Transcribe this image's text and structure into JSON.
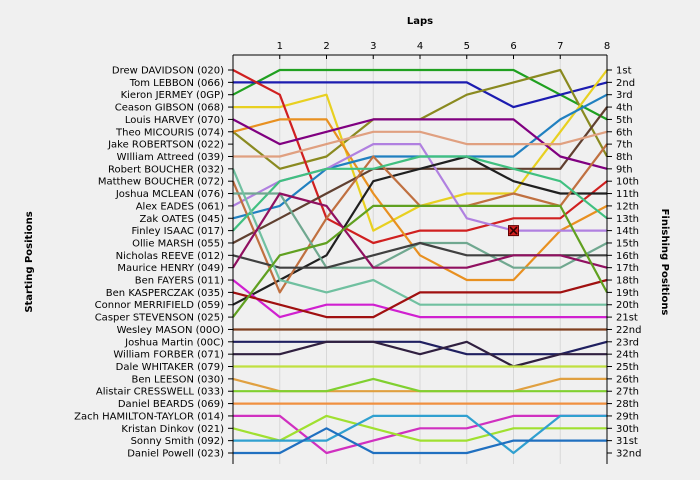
{
  "chart_data": {
    "type": "line",
    "title": "",
    "xlabel": "Laps",
    "ylabel": "Starting Positions",
    "y2label": "Finishing Positions",
    "x": [
      0,
      1,
      2,
      3,
      4,
      5,
      6,
      7,
      8
    ],
    "x_tick_labels": [
      "1",
      "2",
      "3",
      "4",
      "5",
      "6",
      "7",
      "8"
    ],
    "ylim": [
      1,
      32
    ],
    "y_inverted": true,
    "grid": true,
    "start_labels": [
      "Drew DAVIDSON (020)",
      "Tom LEBBON (066)",
      "Kieron JERMEY (0GP)",
      "Ceason GIBSON (068)",
      "Louis HARVEY (070)",
      "Theo MICOURIS (074)",
      "Jake ROBERTSON (022)",
      "WIlliam Attreed (039)",
      "Robert BOUCHER (032)",
      "Matthew BOUCHER (072)",
      "Joshua MCLEAN (076)",
      "Alex EADES (061)",
      "Zak OATES (045)",
      "Finley ISAAC (017)",
      "Ollie MARSH (055)",
      "Nicholas REEVE (012)",
      "Maurice HENRY (049)",
      "Ben FAYERS (011)",
      "Ben KASPERCZAK (035)",
      "Connor MERRIFIELD (059)",
      "Casper STEVENSON (025)",
      "Wesley MASON (00O)",
      "Joshua Martin (00C)",
      "William FORBER (071)",
      "Dale WHITAKER (079)",
      "Ben LEESON (030)",
      "Alistair CRESSWELL (033)",
      "Daniel BEARDS (069)",
      "Zach HAMILTON-TAYLOR (014)",
      "Kristan Dinkov (021)",
      "Sonny Smith (092)",
      "Daniel Powell (023)"
    ],
    "finish_labels": [
      "1st",
      "2nd",
      "3rd",
      "4th",
      "5th",
      "6th",
      "7th",
      "8th",
      "9th",
      "10th",
      "11th",
      "12th",
      "13th",
      "14th",
      "15th",
      "16th",
      "17th",
      "18th",
      "19th",
      "20th",
      "21st",
      "22nd",
      "23rd",
      "24th",
      "25th",
      "26th",
      "27th",
      "28th",
      "29th",
      "30th",
      "31st",
      "32nd"
    ],
    "retired_marker": {
      "x": 6,
      "y": 14
    },
    "series": [
      {
        "color": "#20a020",
        "values": [
          3,
          1,
          1,
          1,
          1,
          1,
          1,
          3,
          5
        ]
      },
      {
        "color": "#1c1cb0",
        "values": [
          2,
          2,
          2,
          2,
          2,
          2,
          4,
          3,
          2
        ]
      },
      {
        "color": "#8a8a20",
        "values": [
          6,
          9,
          8,
          5,
          5,
          3,
          2,
          1,
          8
        ]
      },
      {
        "color": "#e8d020",
        "values": [
          4,
          4,
          3,
          14,
          12,
          11,
          11,
          6,
          1
        ]
      },
      {
        "color": "#d02020",
        "values": [
          1,
          3,
          13,
          15,
          14,
          14,
          13,
          13,
          10
        ]
      },
      {
        "color": "#e89020",
        "values": [
          6,
          5,
          5,
          11,
          16,
          18,
          18,
          14,
          12
        ]
      },
      {
        "color": "#2080c0",
        "values": [
          13,
          12,
          9,
          8,
          8,
          8,
          8,
          5,
          3
        ]
      },
      {
        "color": "#604030",
        "values": [
          15,
          13,
          11,
          9,
          9,
          9,
          9,
          9,
          4
        ]
      },
      {
        "color": "#800080",
        "values": [
          5,
          7,
          6,
          5,
          5,
          5,
          5,
          8,
          9
        ]
      },
      {
        "color": "#e0a080",
        "values": [
          8,
          8,
          7,
          6,
          6,
          7,
          7,
          7,
          6
        ]
      },
      {
        "color": "#b080e0",
        "values": [
          12,
          10,
          9,
          7,
          7,
          13,
          14,
          14,
          14
        ]
      },
      {
        "color": "#202020",
        "values": [
          20,
          18,
          16,
          10,
          9,
          8,
          10,
          11,
          11
        ]
      },
      {
        "color": "#c07040",
        "values": [
          10,
          19,
          13,
          8,
          12,
          12,
          11,
          12,
          7
        ]
      },
      {
        "color": "#40c080",
        "values": [
          14,
          10,
          9,
          9,
          8,
          8,
          9,
          10,
          13
        ]
      },
      {
        "color": "#70a890",
        "values": [
          11,
          11,
          17,
          17,
          15,
          15,
          17,
          17,
          15
        ]
      },
      {
        "color": "#404040",
        "values": [
          16,
          17,
          17,
          16,
          15,
          16,
          16,
          16,
          16
        ]
      },
      {
        "color": "#70c0a0",
        "values": [
          9,
          18,
          19,
          18,
          20,
          20,
          20,
          20,
          20
        ]
      },
      {
        "color": "#901060",
        "values": [
          17,
          11,
          12,
          17,
          17,
          17,
          16,
          16,
          17
        ]
      },
      {
        "color": "#d020d0",
        "values": [
          18,
          21,
          20,
          20,
          21,
          21,
          21,
          21,
          21
        ]
      },
      {
        "color": "#a01010",
        "values": [
          19,
          20,
          21,
          21,
          19,
          19,
          19,
          19,
          18
        ]
      },
      {
        "color": "#60a020",
        "values": [
          21,
          16,
          15,
          12,
          12,
          12,
          12,
          12,
          19
        ]
      },
      {
        "color": "#804020",
        "values": [
          22,
          22,
          22,
          22,
          22,
          22,
          22,
          22,
          22
        ]
      },
      {
        "color": "#202060",
        "values": [
          23,
          23,
          23,
          23,
          23,
          24,
          24,
          24,
          23
        ]
      },
      {
        "color": "#302040",
        "values": [
          24,
          24,
          23,
          23,
          24,
          23,
          25,
          24,
          24
        ]
      },
      {
        "color": "#c0e040",
        "values": [
          25,
          25,
          25,
          25,
          25,
          25,
          25,
          25,
          25
        ]
      },
      {
        "color": "#e0a040",
        "values": [
          26,
          27,
          27,
          27,
          27,
          27,
          27,
          26,
          26
        ]
      },
      {
        "color": "#80d030",
        "values": [
          27,
          27,
          27,
          26,
          27,
          27,
          27,
          27,
          27
        ]
      },
      {
        "color": "#f09040",
        "values": [
          28,
          28,
          28,
          28,
          28,
          28,
          28,
          28,
          28
        ]
      },
      {
        "color": "#d030c0",
        "values": [
          29,
          29,
          32,
          31,
          30,
          30,
          29,
          29,
          29
        ]
      },
      {
        "color": "#a0e030",
        "values": [
          30,
          31,
          29,
          30,
          31,
          31,
          30,
          30,
          30
        ]
      },
      {
        "color": "#30a0d0",
        "values": [
          31,
          31,
          31,
          29,
          29,
          29,
          32,
          29,
          29
        ]
      },
      {
        "color": "#2070c0",
        "values": [
          32,
          32,
          30,
          32,
          32,
          32,
          31,
          31,
          31
        ]
      }
    ]
  }
}
